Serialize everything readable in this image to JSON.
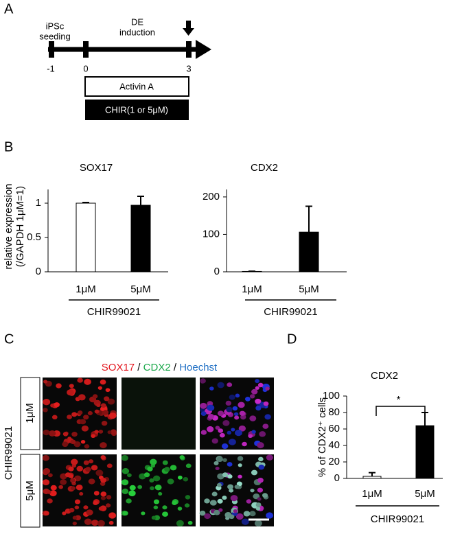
{
  "panel_labels": [
    "A",
    "B",
    "C",
    "D"
  ],
  "timeline": {
    "stage_labels": [
      [
        "iPSc",
        "seeding"
      ],
      [
        "DE",
        "induction"
      ]
    ],
    "day_labels": [
      "-1",
      "0",
      "3"
    ],
    "boxes": [
      "Activin A",
      "CHIR(1 or 5μM)"
    ]
  },
  "imaging": {
    "stains": [
      {
        "text": "SOX17",
        "color": "#e3161e"
      },
      {
        "text": " / ",
        "color": "#000000"
      },
      {
        "text": "CDX2",
        "color": "#1aa84a"
      },
      {
        "text": " / ",
        "color": "#000000"
      },
      {
        "text": "Hoechst",
        "color": "#1f6fc4"
      }
    ],
    "row_labels": [
      "1μM",
      "5μM"
    ],
    "side_label": "CHIR99021"
  },
  "chart_data": [
    {
      "type": "bar",
      "title": "SOX17",
      "ylabel": [
        "relative expression",
        "(/GAPDH 1μM=1)"
      ],
      "categories": [
        "1μM",
        "5μM"
      ],
      "group_label": "CHIR99021",
      "values": [
        1.0,
        0.97
      ],
      "errors": [
        0.01,
        0.13
      ],
      "colors": [
        "#ffffff",
        "#000000"
      ],
      "ylim": [
        0,
        1.2
      ],
      "yticks": [
        0,
        0.5,
        1
      ]
    },
    {
      "type": "bar",
      "title": "CDX2",
      "categories": [
        "1μM",
        "5μM"
      ],
      "group_label": "CHIR99021",
      "values": [
        1,
        106
      ],
      "errors": [
        0.5,
        69
      ],
      "colors": [
        "#ffffff",
        "#000000"
      ],
      "ylim": [
        0,
        220
      ],
      "yticks": [
        0,
        100,
        200
      ]
    },
    {
      "type": "bar",
      "title": "CDX2",
      "ylabel": [
        "% of CDX2⁺ cells"
      ],
      "categories": [
        "1μM",
        "5μM"
      ],
      "group_label": "CHIR99021",
      "values": [
        2.5,
        64
      ],
      "errors": [
        4.5,
        16
      ],
      "colors": [
        "#ffffff",
        "#000000"
      ],
      "ylim": [
        0,
        100
      ],
      "yticks": [
        0,
        20,
        40,
        60,
        80,
        100
      ],
      "annotation": "*"
    }
  ]
}
